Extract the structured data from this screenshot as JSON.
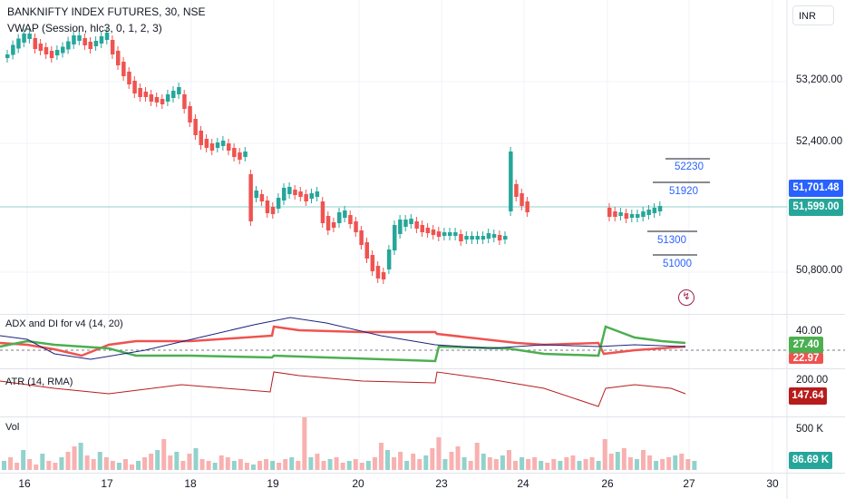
{
  "header": {
    "symbol": "BANKNIFTY INDEX FUTURES, 30, NSE",
    "indicator": "VWAP (Session, hlc3, 0, 1, 2, 3)"
  },
  "currency_button": "INR",
  "price_scale": {
    "ticks": [
      "53,200.00",
      "52,400.00",
      "50,800.00"
    ],
    "badge_blue": "51,701.48",
    "badge_green": "51,599.00"
  },
  "levels": [
    "52230",
    "51920",
    "51300",
    "51000"
  ],
  "adx_pane": {
    "title": "ADX and DI for v4 (14, 20)",
    "scale_tick": "40.00",
    "badge_green": "27.40",
    "badge_red": "22.97"
  },
  "atr_pane": {
    "title": "ATR (14, RMA)",
    "scale_tick": "200.00",
    "badge_red": "147.64"
  },
  "vol_pane": {
    "title": "Vol",
    "scale_tick": "500 K",
    "badge_teal": "86.69 K"
  },
  "x_axis": [
    "16",
    "17",
    "18",
    "19",
    "20",
    "23",
    "24",
    "26",
    "27",
    "30"
  ],
  "colors": {
    "up": "#26a69a",
    "down": "#ef5350",
    "blue": "#2962ff",
    "adx_green": "#4caf50",
    "adx_navy": "#1a237e",
    "atr_red": "#b71c1c"
  },
  "chart_data": {
    "type": "candlestick",
    "y_ticks": [
      53200,
      52400,
      50800
    ],
    "last_price": 51599.0,
    "vwap_badge": 51701.48,
    "levels": [
      52230,
      51920,
      51300,
      51000
    ]
  }
}
